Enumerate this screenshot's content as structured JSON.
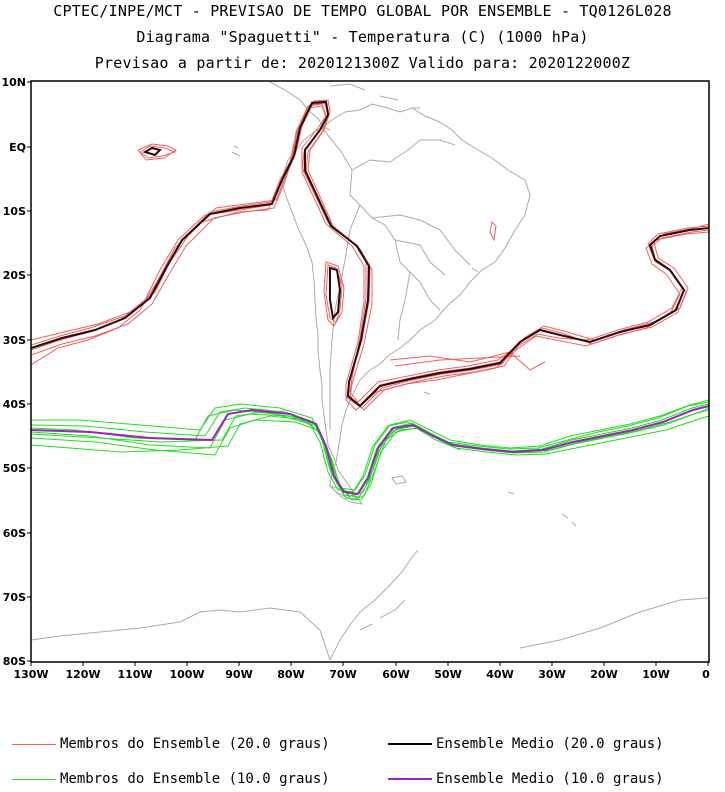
{
  "titles": {
    "line1": "CPTEC/INPE/MCT - PREVISAO DE TEMPO GLOBAL POR ENSEMBLE - TQ0126L028",
    "line2": "Diagrama \"Spaguetti\" - Temperatura (C) (1000 hPa)",
    "line3": "Previsao a partir de: 2020121300Z  Valido para: 2020122000Z"
  },
  "axes": {
    "lat_labels": [
      "10N",
      "EQ",
      "10S",
      "20S",
      "30S",
      "40S",
      "50S",
      "60S",
      "70S",
      "80S"
    ],
    "lon_labels": [
      "130W",
      "120W",
      "110W",
      "100W",
      "90W",
      "80W",
      "70W",
      "60W",
      "50W",
      "40W",
      "30W",
      "20W",
      "10W",
      "0"
    ]
  },
  "legend": [
    {
      "label": "Membros do Ensemble (20.0 graus)",
      "color": "#f06060",
      "style": "thin"
    },
    {
      "label": "Ensemble Medio (20.0 graus)",
      "color": "#000000",
      "style": "thick"
    },
    {
      "label": "Membros do Ensemble (10.0 graus)",
      "color": "#22dd22",
      "style": "thin"
    },
    {
      "label": "Ensemble Medio (10.0 graus)",
      "color": "#a020c0",
      "style": "thick"
    }
  ],
  "colors": {
    "coast": "#aaaaaa",
    "member20": "#f06060",
    "mean20": "#000000",
    "member10": "#22dd22",
    "mean10": "#a020c0"
  }
}
